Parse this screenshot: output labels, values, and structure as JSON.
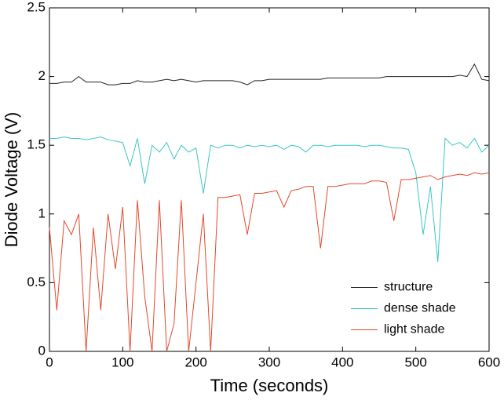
{
  "chart_data": {
    "type": "line",
    "xlabel": "Time (seconds)",
    "ylabel": "Diode Voltage (V)",
    "x": [
      0,
      10,
      20,
      30,
      40,
      50,
      60,
      70,
      80,
      90,
      100,
      110,
      120,
      130,
      140,
      150,
      160,
      170,
      180,
      190,
      200,
      210,
      220,
      230,
      240,
      250,
      260,
      270,
      280,
      290,
      300,
      310,
      320,
      330,
      340,
      350,
      360,
      370,
      380,
      390,
      400,
      410,
      420,
      430,
      440,
      450,
      460,
      470,
      480,
      490,
      500,
      510,
      520,
      530,
      540,
      550,
      560,
      570,
      580,
      590,
      600
    ],
    "series": [
      {
        "name": "structure",
        "color": "#222222",
        "values": [
          1.95,
          1.95,
          1.96,
          1.96,
          2.0,
          1.96,
          1.96,
          1.96,
          1.94,
          1.94,
          1.95,
          1.95,
          1.97,
          1.96,
          1.96,
          1.97,
          1.98,
          1.97,
          1.98,
          1.97,
          1.96,
          1.97,
          1.97,
          1.97,
          1.97,
          1.97,
          1.96,
          1.94,
          1.97,
          1.97,
          1.98,
          1.98,
          1.98,
          1.98,
          1.98,
          1.98,
          1.98,
          1.98,
          1.99,
          1.99,
          1.99,
          1.99,
          1.99,
          1.99,
          1.99,
          1.99,
          2.0,
          2.0,
          2.0,
          2.0,
          2.0,
          2.0,
          2.0,
          2.0,
          2.0,
          2.0,
          2.01,
          2.0,
          2.09,
          1.98,
          1.97
        ]
      },
      {
        "name": "dense shade",
        "color": "#3cc6c6",
        "values": [
          1.55,
          1.55,
          1.56,
          1.55,
          1.55,
          1.54,
          1.55,
          1.56,
          1.54,
          1.53,
          1.52,
          1.35,
          1.55,
          1.22,
          1.5,
          1.45,
          1.52,
          1.4,
          1.5,
          1.45,
          1.48,
          1.15,
          1.5,
          1.48,
          1.5,
          1.5,
          1.48,
          1.5,
          1.49,
          1.5,
          1.49,
          1.5,
          1.47,
          1.5,
          1.49,
          1.45,
          1.5,
          1.5,
          1.49,
          1.5,
          1.5,
          1.5,
          1.5,
          1.49,
          1.5,
          1.5,
          1.49,
          1.48,
          1.48,
          1.47,
          1.3,
          0.85,
          1.2,
          0.65,
          1.55,
          1.5,
          1.52,
          1.48,
          1.55,
          1.45,
          1.5
        ]
      },
      {
        "name": "light shade",
        "color": "#e4482c",
        "values": [
          0.9,
          0.3,
          0.95,
          0.85,
          1.0,
          0.0,
          0.9,
          0.3,
          1.0,
          0.6,
          1.05,
          0.0,
          1.1,
          0.4,
          0.0,
          1.1,
          0.0,
          0.2,
          1.1,
          0.0,
          0.5,
          1.0,
          0.0,
          1.12,
          1.12,
          1.13,
          1.14,
          0.85,
          1.15,
          1.15,
          1.16,
          1.17,
          1.05,
          1.17,
          1.18,
          1.2,
          1.2,
          0.75,
          1.2,
          1.2,
          1.21,
          1.22,
          1.22,
          1.22,
          1.24,
          1.24,
          1.23,
          0.95,
          1.25,
          1.25,
          1.26,
          1.27,
          1.28,
          1.25,
          1.27,
          1.28,
          1.29,
          1.28,
          1.3,
          1.29,
          1.3
        ]
      }
    ],
    "xlim": [
      0,
      600
    ],
    "xticks": [
      0,
      100,
      200,
      300,
      400,
      500,
      600
    ],
    "ylim": [
      0,
      2.5
    ],
    "yticks": [
      0,
      0.5,
      1,
      1.5,
      2,
      2.5
    ],
    "legend": "lower right"
  }
}
